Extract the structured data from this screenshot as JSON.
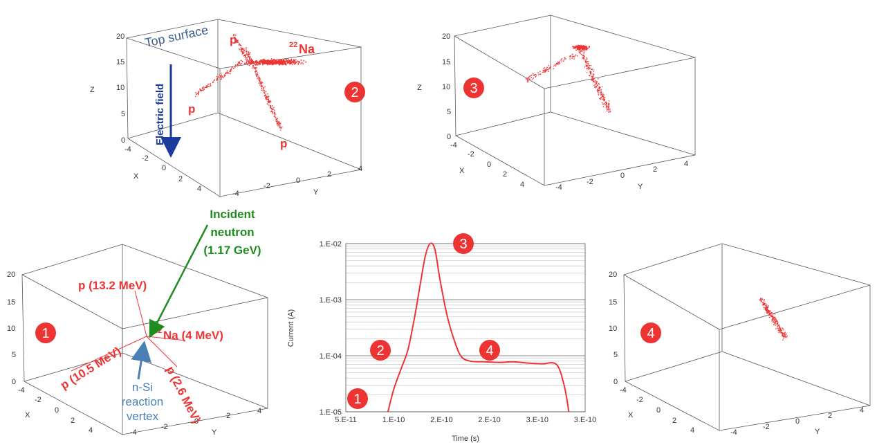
{
  "panels": {
    "p2": {
      "zticks": [
        "0",
        "5",
        "10",
        "15",
        "20"
      ],
      "zlabel": "Z",
      "xticks": [
        "-4",
        "-2",
        "0",
        "2",
        "4"
      ],
      "xlabel": "X",
      "yticks": [
        "-4",
        "-2",
        "0",
        "2",
        "4"
      ],
      "ylabel": "Y",
      "badge": "2",
      "top_surface": "Top surface",
      "efield": "Electric field",
      "p_label": "p",
      "na_sup": "22",
      "na_label": "Na"
    },
    "p3": {
      "zticks": [
        "0",
        "5",
        "10",
        "15",
        "20"
      ],
      "zlabel": "Z",
      "xticks": [
        "-4",
        "-2",
        "0",
        "2",
        "4"
      ],
      "xlabel": "X",
      "yticks": [
        "-4",
        "-2",
        "0",
        "2",
        "4"
      ],
      "ylabel": "Y",
      "badge": "3"
    },
    "p1": {
      "zticks": [
        "0",
        "5",
        "10",
        "15",
        "20"
      ],
      "xticks": [
        "-4",
        "-2",
        "0",
        "2",
        "4"
      ],
      "xlabel": "X",
      "yticks": [
        "-4",
        "-2",
        "0",
        "2",
        "4"
      ],
      "ylabel": "Y",
      "badge": "1",
      "p132": "p (13.2 MeV)",
      "p105": "p (10.5 MeV)",
      "p26": "p (2.6 MeV)",
      "na_sup": "22",
      "na_label": "Na (4 MeV)",
      "vertex": [
        "n-Si",
        "reaction",
        "vertex"
      ]
    },
    "p4": {
      "zticks": [
        "0",
        "5",
        "10",
        "15",
        "20"
      ],
      "xticks": [
        "-4",
        "-2",
        "0",
        "2",
        "4"
      ],
      "xlabel": "X",
      "yticks": [
        "-4",
        "-2",
        "0",
        "2",
        "4"
      ],
      "ylabel": "Y",
      "badge": "4"
    }
  },
  "incident": [
    "Incident",
    "neutron",
    "(1.17 GeV)"
  ],
  "colors": {
    "red": "#ee3333",
    "green": "#1e8c1e",
    "blue": "#1a3a9c",
    "steel": "#4a7fb5",
    "title_blue": "#3b5e8c"
  },
  "chart_data": {
    "type": "line",
    "ylabel": "Current (A)",
    "xlabel": "Time (s)",
    "yscale": "log",
    "ylim": [
      1e-05,
      0.01
    ],
    "ytick_labels": [
      "1.E-05",
      "1.E-04",
      "1.E-03",
      "1.E-02"
    ],
    "xlim": [
      5e-11,
      3e-10
    ],
    "xtick_labels": [
      "5.E-11",
      "1.E-10",
      "2.E-10",
      "2.E-10",
      "3.E-10",
      "3.E-10"
    ],
    "series": [
      {
        "x": [
          9.4e-11,
          1e-10,
          1.08e-10,
          1.15e-10,
          1.22e-10,
          1.28e-10,
          1.33e-10,
          1.38e-10,
          1.43e-10,
          1.48e-10,
          1.55e-10,
          1.62e-10,
          1.7e-10,
          1.8e-10,
          1.95e-10,
          2.1e-10,
          2.25e-10,
          2.4e-10,
          2.55e-10,
          2.7e-10,
          2.78e-10,
          2.83e-10
        ],
        "y": [
          1e-05,
          2.5e-05,
          6e-05,
          0.00013,
          0.0005,
          0.002,
          0.006,
          0.01,
          0.008,
          0.0025,
          0.0006,
          0.00022,
          0.0001,
          8e-05,
          7.8e-05,
          7.6e-05,
          7.8e-05,
          7.4e-05,
          7.2e-05,
          7e-05,
          3e-05,
          1e-05
        ]
      }
    ],
    "annotations": [
      "1",
      "2",
      "3",
      "4"
    ]
  }
}
